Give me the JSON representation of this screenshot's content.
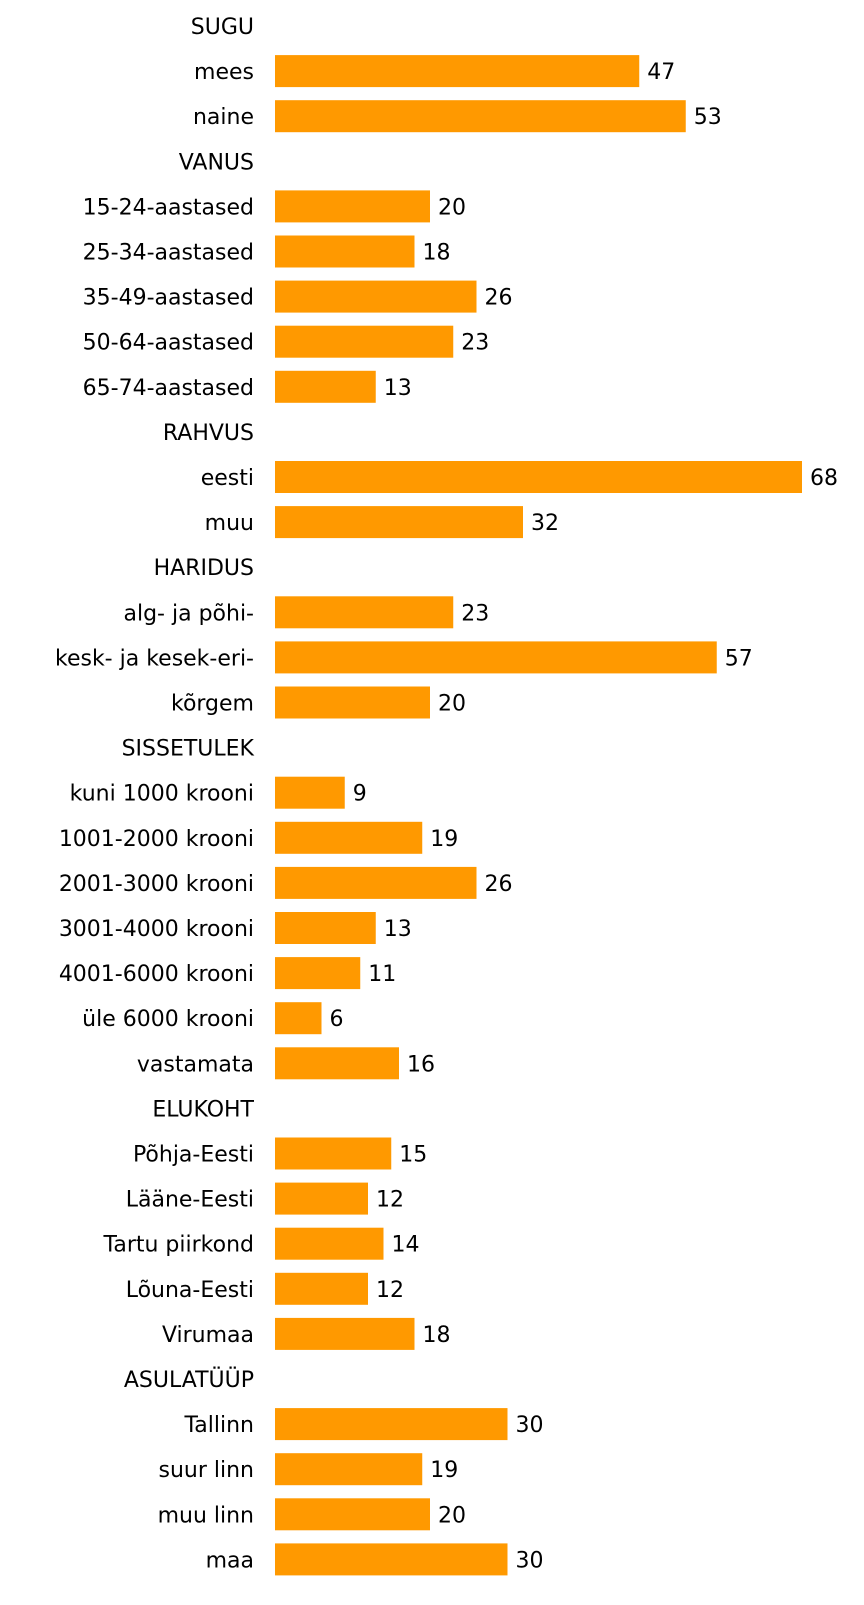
{
  "chart_data": {
    "type": "bar",
    "orientation": "horizontal",
    "grid": false,
    "bar_color": "#ff9900",
    "data_labels": true,
    "rows": [
      {
        "kind": "group",
        "label": "SUGU"
      },
      {
        "kind": "bar",
        "label": "mees",
        "value": 47
      },
      {
        "kind": "bar",
        "label": "naine",
        "value": 53
      },
      {
        "kind": "group",
        "label": "VANUS"
      },
      {
        "kind": "bar",
        "label": "15-24-aastased",
        "value": 20
      },
      {
        "kind": "bar",
        "label": "25-34-aastased",
        "value": 18
      },
      {
        "kind": "bar",
        "label": "35-49-aastased",
        "value": 26
      },
      {
        "kind": "bar",
        "label": "50-64-aastased",
        "value": 23
      },
      {
        "kind": "bar",
        "label": "65-74-aastased",
        "value": 13
      },
      {
        "kind": "group",
        "label": "RAHVUS"
      },
      {
        "kind": "bar",
        "label": "eesti",
        "value": 68
      },
      {
        "kind": "bar",
        "label": "muu",
        "value": 32
      },
      {
        "kind": "group",
        "label": "HARIDUS"
      },
      {
        "kind": "bar",
        "label": "alg- ja põhi-",
        "value": 23
      },
      {
        "kind": "bar",
        "label": "kesk- ja kesek-eri-",
        "value": 57
      },
      {
        "kind": "bar",
        "label": "kõrgem",
        "value": 20
      },
      {
        "kind": "group",
        "label": "SISSETULEK"
      },
      {
        "kind": "bar",
        "label": "kuni 1000 krooni",
        "value": 9
      },
      {
        "kind": "bar",
        "label": "1001-2000 krooni",
        "value": 19
      },
      {
        "kind": "bar",
        "label": "2001-3000 krooni",
        "value": 26
      },
      {
        "kind": "bar",
        "label": "3001-4000 krooni",
        "value": 13
      },
      {
        "kind": "bar",
        "label": "4001-6000 krooni",
        "value": 11
      },
      {
        "kind": "bar",
        "label": "üle 6000 krooni",
        "value": 6
      },
      {
        "kind": "bar",
        "label": "vastamata",
        "value": 16
      },
      {
        "kind": "group",
        "label": "ELUKOHT"
      },
      {
        "kind": "bar",
        "label": "Põhja-Eesti",
        "value": 15
      },
      {
        "kind": "bar",
        "label": "Lääne-Eesti",
        "value": 12
      },
      {
        "kind": "bar",
        "label": "Tartu piirkond",
        "value": 14
      },
      {
        "kind": "bar",
        "label": "Lõuna-Eesti",
        "value": 12
      },
      {
        "kind": "bar",
        "label": "Virumaa",
        "value": 18
      },
      {
        "kind": "group",
        "label": "ASULATÜÜP"
      },
      {
        "kind": "bar",
        "label": "Tallinn",
        "value": 30
      },
      {
        "kind": "bar",
        "label": "suur linn",
        "value": 19
      },
      {
        "kind": "bar",
        "label": "muu linn",
        "value": 20
      },
      {
        "kind": "bar",
        "label": "maa",
        "value": 30
      }
    ]
  }
}
